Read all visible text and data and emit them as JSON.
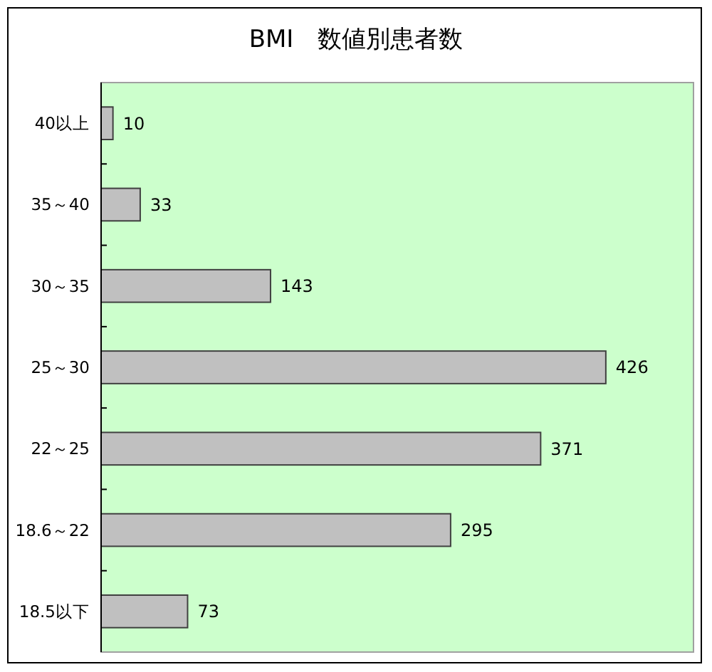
{
  "chart_data": {
    "type": "bar",
    "orientation": "horizontal",
    "title": "BMI　数値別患者数",
    "categories": [
      "40以上",
      "35～40",
      "30～35",
      "25～30",
      "22～25",
      "18.6～22",
      "18.5以下"
    ],
    "values": [
      10,
      33,
      143,
      426,
      371,
      295,
      73
    ],
    "color": "#c0c0c0",
    "xlim": [
      0,
      500
    ],
    "data_labels": true,
    "tick_labels": "y"
  }
}
